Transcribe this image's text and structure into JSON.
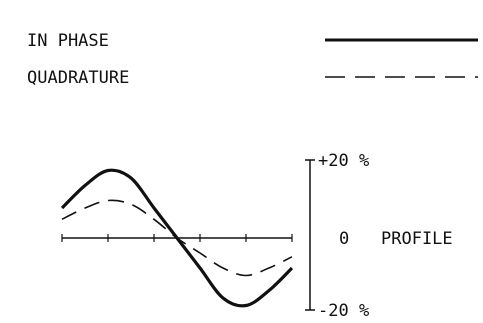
{
  "chart_data": {
    "type": "line",
    "legend": {
      "placement": "top-right",
      "entries": [
        {
          "label": "IN PHASE",
          "style": "solid"
        },
        {
          "label": "QUADRATURE",
          "style": "dashed"
        }
      ]
    },
    "scale": {
      "top_label": "+20 %",
      "zero_label": "0",
      "bottom_label": "-20 %",
      "axis_title": "PROFILE",
      "ylim": [
        -20,
        20
      ]
    },
    "grid": false,
    "series": [
      {
        "name": "IN PHASE",
        "style": "solid",
        "x": [
          0.0,
          0.1,
          0.2,
          0.3,
          0.4,
          0.5,
          0.6,
          0.7,
          0.8,
          0.9,
          1.0
        ],
        "y": [
          8,
          14,
          18,
          16,
          8,
          0,
          -8,
          -16,
          -18,
          -14,
          -8
        ]
      },
      {
        "name": "QUADRATURE",
        "style": "dashed",
        "x": [
          0.0,
          0.1,
          0.2,
          0.3,
          0.4,
          0.5,
          0.6,
          0.7,
          0.8,
          0.9,
          1.0
        ],
        "y": [
          5,
          8,
          10,
          9,
          5,
          0,
          -4,
          -8,
          -10,
          -8,
          -5
        ]
      }
    ]
  }
}
